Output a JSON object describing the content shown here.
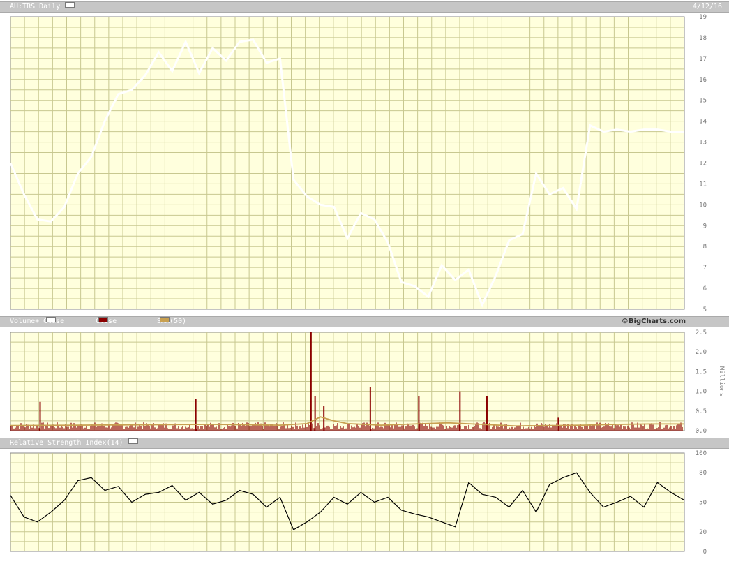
{
  "header": {
    "symbol_title": "AU:TRS Daily",
    "date": "4/12/16"
  },
  "volume_header": {
    "label": "Volume+",
    "close_up": "Close Up",
    "close_down": "Close Down",
    "sma": "SMA(50)",
    "brand": "©BigCharts.com"
  },
  "rsi_header": {
    "label": "Relative Strength Index(14)"
  },
  "colors": {
    "plot_bg": "#ffffdd",
    "grid": "#c8c890",
    "price_line": "#ffffff",
    "down_bar": "#8b0000",
    "sma": "#c8a050",
    "rsi_line": "#000000"
  },
  "chart_data": [
    {
      "type": "line",
      "title": "AU:TRS Daily",
      "y_ticks": [
        "5",
        "6",
        "7",
        "8",
        "9",
        "10",
        "11",
        "12",
        "13",
        "14",
        "15",
        "16",
        "17",
        "18",
        "19"
      ],
      "ylim": [
        5,
        19
      ],
      "x": [
        0,
        2,
        4,
        6,
        8,
        10,
        12,
        14,
        16,
        18,
        20,
        22,
        24,
        26,
        28,
        30,
        32,
        34,
        36,
        38,
        40,
        42,
        44,
        46,
        48,
        50,
        52,
        54,
        56,
        58,
        60,
        62,
        64,
        66,
        68,
        70,
        72,
        74,
        76,
        78,
        80,
        82,
        84,
        86,
        88,
        90,
        92,
        94,
        96,
        98,
        100
      ],
      "values": [
        12,
        10.5,
        9.3,
        9.2,
        9.9,
        11.5,
        12.3,
        14,
        15.3,
        15.5,
        16.2,
        17.3,
        16.4,
        17.8,
        16.3,
        17.5,
        16.9,
        17.8,
        17.9,
        16.8,
        17.0,
        11.2,
        10.4,
        10.0,
        9.9,
        8.4,
        9.6,
        9.3,
        8.2,
        6.3,
        6.1,
        5.6,
        7.1,
        6.4,
        6.9,
        5.2,
        6.6,
        8.3,
        8.6,
        11.5,
        10.5,
        10.8,
        9.8,
        13.8,
        13.5,
        13.6,
        13.5,
        13.6,
        13.6,
        13.5,
        13.5
      ],
      "grid": true
    },
    {
      "type": "bar",
      "title": "Volume+",
      "y_ticks": [
        "0.0",
        "0.5",
        "1.0",
        "1.5",
        "2.0",
        "2.5"
      ],
      "ylabel": "Millions",
      "ylim": [
        0,
        2.5
      ],
      "spikes": [
        {
          "x": 4.4,
          "value": 0.73
        },
        {
          "x": 27.5,
          "value": 0.8
        },
        {
          "x": 44.6,
          "value": 2.5
        },
        {
          "x": 45.2,
          "value": 0.88
        },
        {
          "x": 46.5,
          "value": 0.62
        },
        {
          "x": 53.4,
          "value": 1.1
        },
        {
          "x": 60.6,
          "value": 0.88
        },
        {
          "x": 66.7,
          "value": 1.0
        },
        {
          "x": 70.7,
          "value": 0.88
        },
        {
          "x": 81.3,
          "value": 0.33
        }
      ],
      "series": [
        {
          "name": "SMA(50)",
          "x": [
            0,
            10,
            20,
            30,
            40,
            44,
            46,
            48,
            50,
            55,
            60,
            65,
            70,
            75,
            80,
            85,
            90,
            95,
            100
          ],
          "values": [
            0.13,
            0.14,
            0.15,
            0.16,
            0.14,
            0.18,
            0.35,
            0.25,
            0.18,
            0.14,
            0.17,
            0.2,
            0.16,
            0.12,
            0.13,
            0.14,
            0.16,
            0.17,
            0.17
          ]
        }
      ],
      "grid": true
    },
    {
      "type": "line",
      "title": "Relative Strength Index(14)",
      "y_ticks": [
        "0",
        "20",
        "50",
        "80",
        "100"
      ],
      "ylim": [
        0,
        100
      ],
      "x": [
        0,
        2,
        4,
        6,
        8,
        10,
        12,
        14,
        16,
        18,
        20,
        22,
        24,
        26,
        28,
        30,
        32,
        34,
        36,
        38,
        40,
        42,
        44,
        46,
        48,
        50,
        52,
        54,
        56,
        58,
        60,
        62,
        64,
        66,
        68,
        70,
        72,
        74,
        76,
        78,
        80,
        82,
        84,
        86,
        88,
        90,
        92,
        94,
        96,
        98,
        100
      ],
      "values": [
        57,
        35,
        30,
        40,
        52,
        72,
        75,
        62,
        66,
        50,
        58,
        60,
        67,
        52,
        60,
        48,
        52,
        62,
        58,
        45,
        55,
        22,
        30,
        40,
        55,
        48,
        60,
        50,
        55,
        42,
        38,
        35,
        30,
        25,
        70,
        58,
        55,
        45,
        62,
        40,
        68,
        75,
        80,
        60,
        45,
        50,
        56,
        45,
        70,
        60,
        52
      ],
      "grid": true
    }
  ]
}
